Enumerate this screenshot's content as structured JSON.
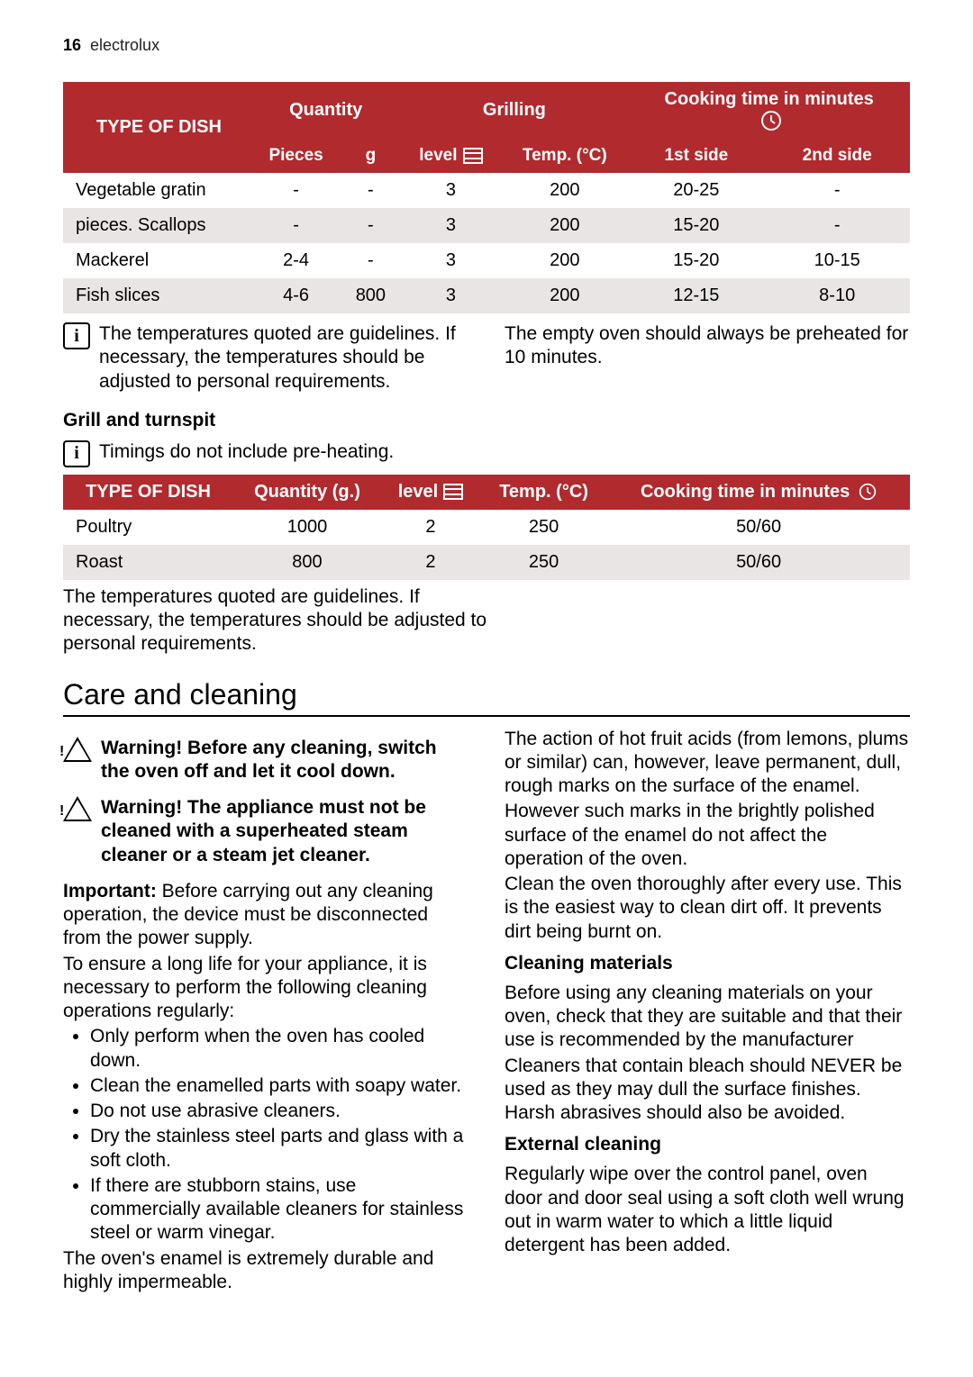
{
  "page": {
    "number": "16",
    "brand": "electrolux"
  },
  "table1": {
    "headers": {
      "quantity": "Quantity",
      "grilling": "Grilling",
      "cooking": "Cooking time in minutes",
      "type": "TYPE OF DISH",
      "pieces": "Pieces",
      "g": "g",
      "level": "level",
      "temp": "Temp. (°C)",
      "side1": "1st side",
      "side2": "2nd side"
    },
    "rows": [
      {
        "dish": "Vegetable gratin",
        "pieces": "-",
        "g": "-",
        "level": "3",
        "temp": "200",
        "s1": "20-25",
        "s2": "-"
      },
      {
        "dish": "pieces. Scallops",
        "pieces": "-",
        "g": "-",
        "level": "3",
        "temp": "200",
        "s1": "15-20",
        "s2": "-"
      },
      {
        "dish": "Mackerel",
        "pieces": "2-4",
        "g": "-",
        "level": "3",
        "temp": "200",
        "s1": "15-20",
        "s2": "10-15"
      },
      {
        "dish": "Fish slices",
        "pieces": "4-6",
        "g": "800",
        "level": "3",
        "temp": "200",
        "s1": "12-15",
        "s2": "8-10"
      }
    ],
    "header_bg": "#b12a2e",
    "row_alt_bg": "#e9e5e5"
  },
  "note1_left": "The temperatures quoted are guidelines. If necessary, the temperatures should be adjusted to personal requirements.",
  "note1_right": "The empty oven should always be preheated for 10 minutes.",
  "section_grill": "Grill and turnspit",
  "note_timings": "Timings do not include pre-heating.",
  "table2": {
    "headers": {
      "type": "TYPE OF DISH",
      "qty": "Quantity (g.)",
      "level": "level",
      "temp": "Temp. (°C)",
      "cooking": "Cooking time in minutes"
    },
    "rows": [
      {
        "dish": "Poultry",
        "qty": "1000",
        "level": "2",
        "temp": "250",
        "time": "50/60"
      },
      {
        "dish": "Roast",
        "qty": "800",
        "level": "2",
        "temp": "250",
        "time": "50/60"
      }
    ]
  },
  "note2": "The temperatures quoted are guidelines. If necessary, the temperatures should be adjusted to personal requirements.",
  "care": {
    "heading": "Care and cleaning",
    "warn1": "Warning! Before any cleaning, switch the oven off and let it cool down.",
    "warn2": "Warning! The appliance must not be cleaned with a superheated steam cleaner or a steam jet cleaner.",
    "important_label": "Important:",
    "important_text": " Before carrying out any cleaning operation, the device must be disconnected from the power supply.",
    "para1": "To ensure a long life for your appliance, it is necessary to perform the following cleaning operations regularly:",
    "bullets": [
      "Only perform when the oven has cooled down.",
      "Clean the enamelled parts with soapy water.",
      "Do not use abrasive cleaners.",
      "Dry the stainless steel parts and glass with a soft cloth.",
      "If there are stubborn stains, use commercially available cleaners for stainless steel or warm vinegar."
    ],
    "para2": "The oven's enamel is extremely durable and highly impermeable.",
    "right_para1": "The action of hot fruit acids (from lemons, plums or similar) can, however, leave permanent, dull, rough marks on the surface of the enamel.",
    "right_para2": "However such marks in the brightly polished surface of the enamel do not affect the operation of the oven.",
    "right_para3": "Clean the oven thoroughly after every use. This is the easiest way to clean dirt off. It prevents dirt being burnt on.",
    "cleaning_materials_h": "Cleaning materials",
    "cm_para1": "Before using any cleaning materials on your oven, check that they are suitable and that their use is recommended by the manufacturer",
    "cm_para2": "Cleaners that contain bleach should NEVER be used as they may dull the surface finishes. Harsh abrasives should also be avoided.",
    "external_h": "External cleaning",
    "ext_para": "Regularly wipe over the control panel, oven door and door seal using a soft cloth well wrung out in warm water to which a little liquid detergent has been added."
  }
}
